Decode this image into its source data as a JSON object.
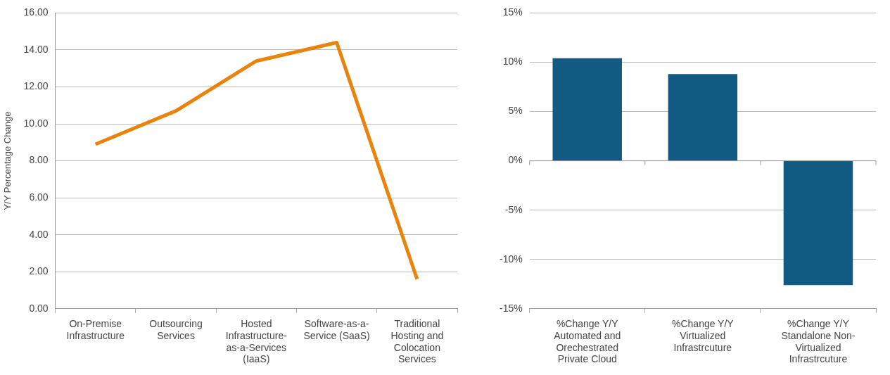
{
  "chart_data": [
    {
      "type": "line",
      "ylabel": "Y/Y Percentage Change",
      "categories": [
        "On-Premise Infrastructure",
        "Outsourcing Services",
        "Hosted Infrastructure-as-a-Services (IaaS)",
        "Software-as-a-Service (SaaS)",
        "Traditional Hosting and Colocation Services"
      ],
      "series": [
        {
          "color": "#e8840c",
          "values": [
            8.9,
            10.7,
            13.4,
            14.4,
            1.6
          ]
        }
      ],
      "ylim": [
        0,
        16
      ],
      "yticks": [
        {
          "value": 0,
          "label": "0.00"
        },
        {
          "value": 2,
          "label": "2.00"
        },
        {
          "value": 4,
          "label": "4.00"
        },
        {
          "value": 6,
          "label": "6.00"
        },
        {
          "value": 8,
          "label": "8.00"
        },
        {
          "value": 10,
          "label": "10.00"
        },
        {
          "value": 12,
          "label": "12.00"
        },
        {
          "value": 14,
          "label": "14.00"
        },
        {
          "value": 16,
          "label": "16.00"
        }
      ],
      "grid": "y",
      "legend": false,
      "marker": "none",
      "line_style": "solid"
    },
    {
      "type": "bar",
      "categories": [
        "%Change Y/Y Automated and Orechestrated Private Cloud",
        "%Change Y/Y Virtualized Infrastrcuture",
        "%Change Y/Y Standalone Non-Virtualized Infrastrcuture"
      ],
      "series": [
        {
          "color": "#115a82",
          "values": [
            10.4,
            8.8,
            -12.6
          ]
        }
      ],
      "ylim": [
        -15,
        15
      ],
      "yticks": [
        {
          "value": -15,
          "label": "-15%"
        },
        {
          "value": -10,
          "label": "-10%"
        },
        {
          "value": -5,
          "label": "-5%"
        },
        {
          "value": 0,
          "label": "0%"
        },
        {
          "value": 5,
          "label": "5%"
        },
        {
          "value": 10,
          "label": "10%"
        },
        {
          "value": 15,
          "label": "15%"
        }
      ],
      "grid": "y",
      "legend": false
    }
  ]
}
